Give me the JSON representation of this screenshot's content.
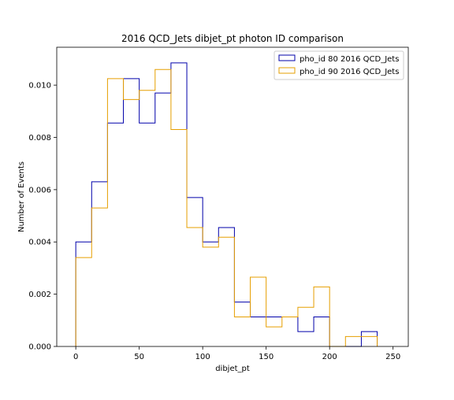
{
  "chart_data": {
    "type": "step-histogram",
    "title": "2016 QCD_Jets dibjet_pt photon ID comparison",
    "xlabel": "dibjet_pt",
    "ylabel": "Number of Events",
    "xlim": [
      -15,
      262
    ],
    "ylim": [
      0,
      0.01145
    ],
    "xticks": [
      0,
      50,
      100,
      150,
      200,
      250
    ],
    "xtick_labels": [
      "0",
      "50",
      "100",
      "150",
      "200",
      "250"
    ],
    "yticks": [
      0,
      0.002,
      0.004,
      0.006,
      0.008,
      0.01
    ],
    "ytick_labels": [
      "0.000",
      "0.002",
      "0.004",
      "0.006",
      "0.008",
      "0.010"
    ],
    "bin_edges": [
      0,
      12.5,
      25,
      37.5,
      50,
      62.5,
      75,
      87.5,
      100,
      112.5,
      125,
      137.5,
      150,
      162.5,
      175,
      187.5,
      200,
      212.5,
      225,
      237.5
    ],
    "legend_position": "upper right",
    "series": [
      {
        "name": "pho_id 80 2016 QCD_Jets",
        "color": "#0000aa",
        "values": [
          0.004,
          0.0063,
          0.00855,
          0.01025,
          0.00855,
          0.0097,
          0.01085,
          0.0057,
          0.004,
          0.00455,
          0.0017,
          0.00113,
          0.00113,
          0.00113,
          0.00057,
          0.00113,
          0.0,
          0.0,
          0.00057
        ]
      },
      {
        "name": "pho_id 90 2016 QCD_Jets",
        "color": "#e69f00",
        "values": [
          0.0034,
          0.0053,
          0.01025,
          0.00945,
          0.0098,
          0.0106,
          0.0083,
          0.00455,
          0.0038,
          0.00418,
          0.00113,
          0.00265,
          0.00075,
          0.00113,
          0.0015,
          0.00228,
          0.0,
          0.00038,
          0.00038
        ]
      }
    ]
  }
}
